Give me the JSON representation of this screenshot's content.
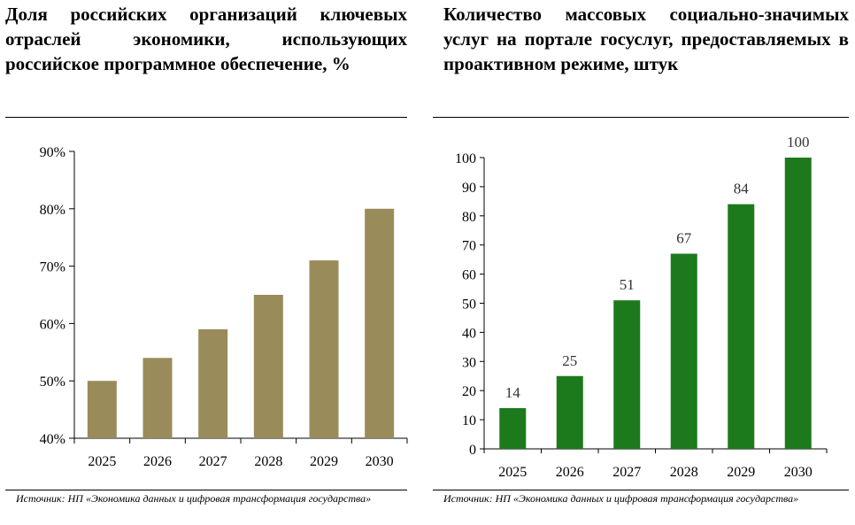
{
  "charts": [
    {
      "title": "Доля российских организаций ключевых отраслей экономики, использующих российское программное обеспечение, %",
      "source": "Источник: НП «Экономика данных и цифровая трансформация государства»"
    },
    {
      "title": "Количество массовых социально-значимых услуг на портале госуслуг, предоставляемых в проактивном режиме, штук",
      "source": "Источник: НП «Экономика данных и цифровая трансформация государства»"
    }
  ],
  "chart_data": [
    {
      "type": "bar",
      "title": "Доля российских организаций ключевых отраслей экономики, использующих российское программное обеспечение, %",
      "xlabel": "",
      "ylabel": "",
      "categories": [
        "2025",
        "2026",
        "2027",
        "2028",
        "2029",
        "2030"
      ],
      "values": [
        50,
        54,
        59,
        65,
        71,
        80
      ],
      "ylim": [
        40,
        90
      ],
      "yticks": [
        40,
        50,
        60,
        70,
        80,
        90
      ],
      "ytick_labels": [
        "40%",
        "50%",
        "60%",
        "70%",
        "80%",
        "90%"
      ],
      "color": "#9a8c5a",
      "grid": false,
      "data_labels": false
    },
    {
      "type": "bar",
      "title": "Количество массовых социально-значимых услуг на портале госуслуг, предоставляемых в проактивном режиме, штук",
      "xlabel": "",
      "ylabel": "",
      "categories": [
        "2025",
        "2026",
        "2027",
        "2028",
        "2029",
        "2030"
      ],
      "values": [
        14,
        25,
        51,
        67,
        84,
        100
      ],
      "ylim": [
        0,
        100
      ],
      "yticks": [
        0,
        10,
        20,
        30,
        40,
        50,
        60,
        70,
        80,
        90,
        100
      ],
      "ytick_labels": [
        "0",
        "10",
        "20",
        "30",
        "40",
        "50",
        "60",
        "70",
        "80",
        "90",
        "100"
      ],
      "color": "#1c7a1c",
      "grid": false,
      "data_labels": true
    }
  ]
}
